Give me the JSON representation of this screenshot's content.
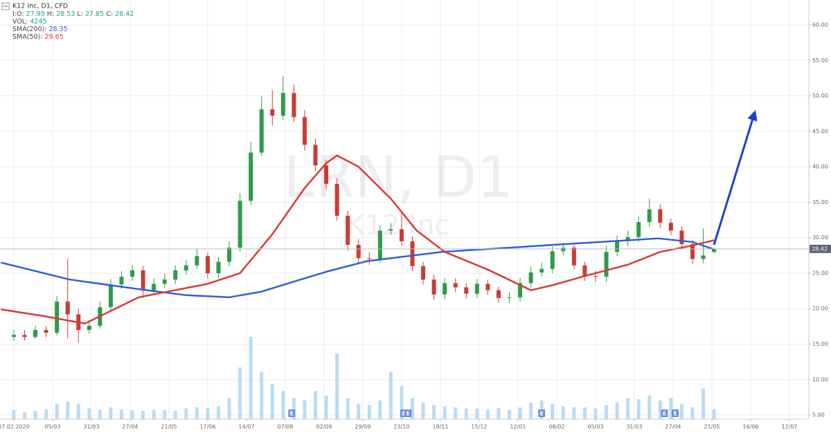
{
  "chart_data": {
    "type": "candlestick",
    "title": "K12 Inc, D1, CFD",
    "header": {
      "prefix": "I:",
      "open_label": "O:",
      "open": 27.99,
      "high_label": "H:",
      "high": 28.53,
      "low_label": "L:",
      "low": 27.85,
      "close_label": "C:",
      "close": 28.42,
      "volume_label": "VOL:",
      "volume": 4245
    },
    "watermark": {
      "symbol": "LRN, D1",
      "name": "K12 Inc"
    },
    "up_color": "#2f9a4b",
    "down_color": "#c93c36",
    "volume_color": "#b9dcf2",
    "value_color": "#1fa39a",
    "x": [
      0,
      5,
      10,
      15,
      20,
      25,
      30,
      35,
      40,
      45,
      50,
      55,
      60,
      65,
      70,
      75,
      80,
      85,
      90,
      95,
      100,
      105,
      110,
      115,
      120,
      125,
      130,
      135,
      140,
      145,
      150,
      155,
      160,
      165,
      170,
      175,
      180,
      185,
      190,
      195,
      200,
      205,
      210,
      215,
      220,
      225,
      230,
      235,
      240,
      245,
      250,
      255,
      260,
      265,
      270,
      275,
      280,
      285,
      290,
      295,
      300,
      305,
      310,
      315,
      320,
      325
    ],
    "open": [
      16.0,
      16.3,
      16.0,
      17.0,
      16.6,
      21.0,
      19.2,
      17.0,
      17.6,
      20.2,
      23.4,
      24.5,
      25.4,
      22.6,
      23.5,
      24.1,
      25.4,
      26.1,
      27.4,
      25.0,
      26.6,
      28.6,
      35.2,
      42.0,
      48.1,
      47.2,
      50.4,
      47.0,
      43.1,
      40.2,
      37.6,
      33.1,
      29.0,
      27.1,
      27.0,
      31.0,
      31.2,
      29.5,
      26.0,
      24.1,
      22.0,
      23.6,
      23.0,
      22.1,
      23.5,
      22.6,
      21.5,
      21.6,
      23.6,
      25.1,
      25.6,
      28.1,
      28.6,
      26.1,
      24.6,
      24.5,
      28.0,
      29.5,
      30.1,
      32.2,
      34.0,
      32.1,
      31.0,
      29.1,
      27.0,
      27.99
    ],
    "high": [
      17.0,
      17.0,
      17.6,
      17.5,
      21.8,
      27.0,
      20.0,
      18.4,
      21.0,
      24.2,
      25.3,
      26.2,
      26.0,
      24.3,
      24.9,
      26.1,
      26.9,
      28.4,
      27.9,
      27.3,
      29.5,
      36.3,
      43.5,
      50.0,
      50.8,
      52.8,
      51.6,
      48.0,
      44.0,
      41.0,
      38.4,
      33.8,
      29.8,
      28.0,
      31.8,
      32.1,
      33.8,
      30.2,
      26.6,
      24.8,
      24.3,
      24.3,
      23.6,
      24.2,
      24.1,
      23.1,
      22.3,
      24.4,
      25.9,
      26.5,
      28.8,
      29.3,
      29.0,
      26.6,
      25.3,
      28.8,
      30.3,
      31.0,
      33.0,
      35.5,
      34.7,
      32.7,
      31.6,
      29.6,
      31.3,
      28.53
    ],
    "low": [
      15.5,
      15.5,
      15.7,
      16.0,
      16.2,
      15.8,
      15.2,
      16.5,
      17.2,
      19.6,
      22.8,
      23.9,
      21.5,
      21.9,
      22.9,
      23.5,
      24.8,
      25.6,
      24.2,
      24.3,
      26.0,
      28.0,
      34.6,
      41.5,
      45.8,
      46.6,
      46.3,
      42.3,
      39.4,
      36.8,
      32.4,
      28.2,
      26.4,
      26.2,
      26.5,
      30.4,
      28.8,
      25.3,
      23.4,
      21.2,
      21.3,
      22.3,
      21.4,
      21.5,
      21.9,
      20.8,
      20.8,
      21.0,
      23.0,
      24.5,
      25.0,
      27.5,
      25.5,
      23.9,
      23.8,
      23.8,
      27.4,
      28.8,
      29.4,
      31.5,
      31.4,
      30.3,
      28.4,
      26.3,
      26.4,
      27.85
    ],
    "close": [
      16.3,
      16.0,
      17.0,
      16.6,
      21.0,
      19.2,
      17.0,
      17.6,
      20.2,
      23.4,
      24.5,
      25.4,
      22.6,
      23.5,
      24.1,
      25.4,
      26.1,
      27.4,
      25.0,
      26.6,
      28.6,
      35.2,
      42.0,
      48.1,
      47.2,
      50.4,
      47.0,
      43.1,
      40.2,
      37.6,
      33.1,
      29.0,
      27.1,
      27.0,
      31.0,
      31.2,
      29.5,
      26.0,
      24.1,
      22.0,
      23.6,
      23.0,
      22.1,
      23.5,
      22.6,
      21.5,
      21.6,
      23.6,
      25.1,
      25.6,
      28.1,
      28.6,
      26.1,
      24.6,
      24.5,
      28.0,
      29.5,
      30.1,
      32.2,
      34.0,
      32.1,
      31.0,
      29.1,
      27.0,
      27.5,
      28.42
    ],
    "volume": [
      4000,
      3000,
      3500,
      4200,
      6500,
      7500,
      6500,
      4500,
      4000,
      5000,
      4200,
      3800,
      3500,
      4000,
      3800,
      3500,
      4500,
      5000,
      4800,
      5500,
      9000,
      22000,
      35000,
      20000,
      15000,
      12000,
      9000,
      8000,
      12000,
      10000,
      28000,
      9000,
      6500,
      6000,
      8000,
      20000,
      14000,
      9000,
      7000,
      6000,
      5500,
      5000,
      4500,
      4500,
      4000,
      4800,
      4000,
      5000,
      7000,
      8000,
      6500,
      5500,
      5000,
      5000,
      4500,
      6000,
      7000,
      9000,
      8500,
      10000,
      8000,
      9000,
      6500,
      5000,
      13000,
      4245
    ],
    "volume_lim": [
      0,
      40000
    ],
    "series": [
      {
        "name": "SMA(200):",
        "color": "#2d5fd6",
        "last": 28.35,
        "x": [
          -6,
          26,
          58,
          80,
          100,
          115,
          132,
          145,
          164,
          199,
          251,
          299,
          315,
          325
        ],
        "values": [
          26.5,
          24.1,
          22.75,
          21.9,
          21.6,
          22.4,
          24.0,
          25.2,
          26.7,
          28.0,
          29.0,
          29.9,
          29.4,
          28.35
        ]
      },
      {
        "name": "SMA(50):",
        "color": "#d93a36",
        "last": 29.65,
        "x": [
          -6,
          13,
          33,
          58,
          90,
          105,
          120,
          135,
          145,
          150,
          160,
          175,
          187,
          200,
          220,
          240,
          250,
          265,
          285,
          300,
          315,
          325
        ],
        "values": [
          19.9,
          19.0,
          17.9,
          21.6,
          23.5,
          25.0,
          30.5,
          37.0,
          40.5,
          41.6,
          40.0,
          35.5,
          31.0,
          28.0,
          25.5,
          22.6,
          23.3,
          24.6,
          26.2,
          28.0,
          28.9,
          29.65
        ]
      }
    ],
    "events": [
      {
        "x": 129,
        "label": "E"
      },
      {
        "x": 181,
        "label": "E"
      },
      {
        "x": 183,
        "label": "E"
      },
      {
        "x": 245,
        "label": "E"
      },
      {
        "x": 302,
        "label": "E"
      },
      {
        "x": 307,
        "label": "E"
      }
    ],
    "xlim": [
      -6.4,
      369.0
    ],
    "xticks": [
      {
        "value": 0,
        "label": "07.02.2020"
      },
      {
        "value": 18,
        "label": "05/03"
      },
      {
        "value": 36,
        "label": "31/03"
      },
      {
        "value": 54,
        "label": "27/04"
      },
      {
        "value": 72,
        "label": "21/05"
      },
      {
        "value": 90,
        "label": "17/06"
      },
      {
        "value": 108,
        "label": "14/07"
      },
      {
        "value": 126,
        "label": "07/08"
      },
      {
        "value": 144,
        "label": "02/09"
      },
      {
        "value": 162,
        "label": "29/09"
      },
      {
        "value": 180,
        "label": "23/10"
      },
      {
        "value": 198,
        "label": "18/11"
      },
      {
        "value": 216,
        "label": "15/12"
      },
      {
        "value": 234,
        "label": "12/01"
      },
      {
        "value": 252,
        "label": "08/02"
      },
      {
        "value": 270,
        "label": "05/03"
      },
      {
        "value": 288,
        "label": "31/03"
      },
      {
        "value": 306,
        "label": "27/04"
      },
      {
        "value": 324,
        "label": "21/05"
      },
      {
        "value": 342,
        "label": "16/06"
      },
      {
        "value": 360,
        "label": "12/07"
      }
    ],
    "ylim": [
      4.42,
      63.51
    ],
    "yticks": [
      {
        "value": 5,
        "label": "5.00"
      },
      {
        "value": 10,
        "label": "10.00"
      },
      {
        "value": 15,
        "label": "15.00"
      },
      {
        "value": 20,
        "label": "20.00"
      },
      {
        "value": 25,
        "label": "25.00"
      },
      {
        "value": 30,
        "label": "30.00"
      },
      {
        "value": 35,
        "label": "35.00"
      },
      {
        "value": 40,
        "label": "40.00"
      },
      {
        "value": 45,
        "label": "45.00"
      },
      {
        "value": 50,
        "label": "50.00"
      },
      {
        "value": 55,
        "label": "55.00"
      },
      {
        "value": 60,
        "label": "60.00"
      }
    ],
    "grid": true
  }
}
